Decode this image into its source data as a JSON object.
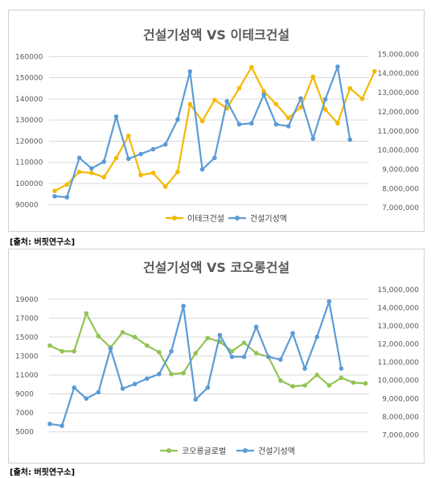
{
  "sources": [
    "[출처: 버핏연구소]",
    "[출처: 버핏연구소]"
  ],
  "chart_data": [
    {
      "type": "line",
      "title": "건설기성액 VS 이테크건설",
      "left_axis": {
        "ticks": [
          90000,
          100000,
          110000,
          120000,
          130000,
          140000,
          150000,
          160000
        ],
        "tick_labels": [
          "90000",
          "100000",
          "110000",
          "120000",
          "130000",
          "140000",
          "150000",
          "160000"
        ],
        "range": [
          86700,
          162000
        ]
      },
      "right_axis": {
        "ticks": [
          7000000,
          8000000,
          9000000,
          10000000,
          11000000,
          12000000,
          13000000,
          14000000,
          15000000
        ],
        "tick_labels": [
          "7,000,000",
          "8,000,000",
          "9,000,000",
          "10,000,000",
          "11,000,000",
          "12,000,000",
          "13,000,000",
          "14,000,000",
          "15,000,000"
        ],
        "range": [
          6800000,
          15100000
        ]
      },
      "grid": "horizontal",
      "legend_position": "bottom",
      "series": [
        {
          "name": "이테크건설",
          "axis": "left",
          "color": "#f5b800",
          "values": [
            96500,
            99500,
            105500,
            105000,
            103000,
            112000,
            122500,
            104000,
            105000,
            98500,
            105500,
            137500,
            129500,
            139500,
            135500,
            145000,
            155000,
            143500,
            137500,
            131000,
            136000,
            150500,
            135000,
            128500,
            145000,
            140000,
            153000
          ]
        },
        {
          "name": "건설기성액",
          "axis": "right",
          "color": "#5b9bd5",
          "values": [
            7600000,
            7550000,
            9600000,
            9050000,
            9400000,
            11750000,
            9550000,
            9800000,
            10050000,
            10300000,
            11600000,
            14100000,
            9000000,
            9600000,
            12550000,
            11350000,
            11400000,
            12900000,
            11350000,
            11250000,
            12700000,
            10600000,
            12650000,
            14350000,
            10550000
          ]
        }
      ]
    },
    {
      "type": "line",
      "title": "건설기성액 VS 코오롱건설",
      "left_axis": {
        "ticks": [
          5000,
          7000,
          9000,
          11000,
          13000,
          15000,
          17000,
          19000
        ],
        "tick_labels": [
          "5000",
          "7000",
          "9000",
          "11000",
          "13000",
          "15000",
          "17000",
          "19000"
        ],
        "range": [
          4200,
          20000
        ]
      },
      "right_axis": {
        "ticks": [
          7000000,
          8000000,
          9000000,
          10000000,
          11000000,
          12000000,
          13000000,
          14000000,
          15000000
        ],
        "tick_labels": [
          "7,000,000",
          "8,000,000",
          "9,000,000",
          "10,000,000",
          "11,000,000",
          "12,000,000",
          "13,000,000",
          "14,000,000",
          "15,000,000"
        ],
        "range": [
          6750000,
          15000000
        ]
      },
      "grid": "horizontal",
      "legend_position": "bottom",
      "series": [
        {
          "name": "코오롱글로벌",
          "axis": "left",
          "color": "#92c353",
          "values": [
            14100,
            13500,
            13500,
            17500,
            15100,
            13900,
            15500,
            15000,
            14100,
            13400,
            11100,
            11200,
            13300,
            14900,
            14500,
            13500,
            14400,
            13300,
            12900,
            10400,
            9800,
            9900,
            11000,
            9900,
            10700,
            10200,
            10100
          ]
        },
        {
          "name": "건설기성액",
          "axis": "right",
          "color": "#5b9bd5",
          "values": [
            7600000,
            7500000,
            9600000,
            9000000,
            9350000,
            11750000,
            9550000,
            9800000,
            10100000,
            10350000,
            11600000,
            14100000,
            8950000,
            9600000,
            12500000,
            11300000,
            11300000,
            12950000,
            11300000,
            11150000,
            12600000,
            10650000,
            12400000,
            14350000,
            10650000
          ]
        }
      ]
    }
  ]
}
